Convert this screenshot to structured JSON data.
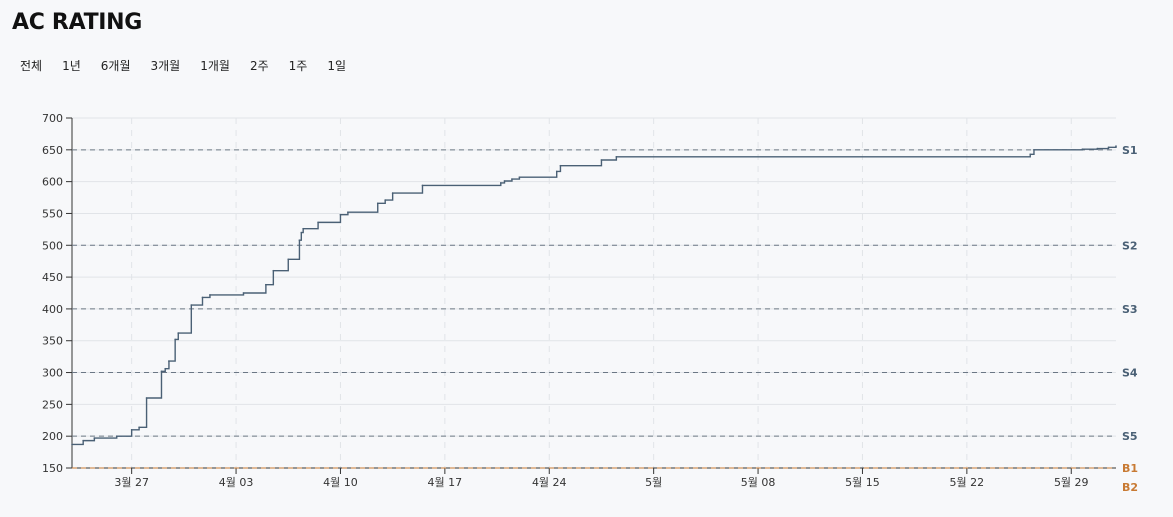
{
  "title": "AC RATING",
  "ranges": [
    "전체",
    "1년",
    "6개월",
    "3개월",
    "1개월",
    "2주",
    "1주",
    "1일"
  ],
  "colors": {
    "line": "#4a6075",
    "grid": "#e1e4e8",
    "threshold": "#6b7785",
    "silver": "#4a6075",
    "bronze": "#c87a33"
  },
  "chart_data": {
    "type": "line",
    "title": "",
    "xlabel": "",
    "ylabel": "",
    "ylim": [
      150,
      700
    ],
    "yticks": [
      150,
      200,
      250,
      300,
      350,
      400,
      450,
      500,
      550,
      600,
      650,
      700
    ],
    "xlim": [
      "2025-03-23",
      "2025-06-01"
    ],
    "xticks": [
      {
        "date": "2025-03-27",
        "label": "3월 27"
      },
      {
        "date": "2025-04-03",
        "label": "4월 03"
      },
      {
        "date": "2025-04-10",
        "label": "4월 10"
      },
      {
        "date": "2025-04-17",
        "label": "4월 17"
      },
      {
        "date": "2025-04-24",
        "label": "4월 24"
      },
      {
        "date": "2025-05-01",
        "label": "5월"
      },
      {
        "date": "2025-05-08",
        "label": "5월 08"
      },
      {
        "date": "2025-05-15",
        "label": "5월 15"
      },
      {
        "date": "2025-05-22",
        "label": "5월 22"
      },
      {
        "date": "2025-05-29",
        "label": "5월 29"
      }
    ],
    "thresholds": [
      {
        "value": 650,
        "label": "S1",
        "tier": "silver"
      },
      {
        "value": 500,
        "label": "S2",
        "tier": "silver"
      },
      {
        "value": 400,
        "label": "S3",
        "tier": "silver"
      },
      {
        "value": 300,
        "label": "S4",
        "tier": "silver"
      },
      {
        "value": 200,
        "label": "S5",
        "tier": "silver"
      },
      {
        "value": 150,
        "label": "B1",
        "tier": "bronze"
      },
      {
        "value": 150,
        "label": "B2",
        "tier": "bronze"
      }
    ],
    "series": [
      {
        "step": true,
        "points": [
          [
            "2025-03-23",
            187
          ],
          [
            "2025-03-23 18:00",
            193
          ],
          [
            "2025-03-24 12:00",
            197
          ],
          [
            "2025-03-26",
            200
          ],
          [
            "2025-03-27",
            210
          ],
          [
            "2025-03-27 12:00",
            214
          ],
          [
            "2025-03-28",
            260
          ],
          [
            "2025-03-29",
            302
          ],
          [
            "2025-03-29 06:00",
            306
          ],
          [
            "2025-03-29 12:00",
            318
          ],
          [
            "2025-03-29 22:00",
            352
          ],
          [
            "2025-03-30 03:00",
            362
          ],
          [
            "2025-03-31",
            406
          ],
          [
            "2025-03-31 18:00",
            418
          ],
          [
            "2025-04-01 06:00",
            422
          ],
          [
            "2025-04-03 12:00",
            425
          ],
          [
            "2025-04-05",
            438
          ],
          [
            "2025-04-05 12:00",
            460
          ],
          [
            "2025-04-06 12:00",
            478
          ],
          [
            "2025-04-07 06:00",
            508
          ],
          [
            "2025-04-07 09:00",
            520
          ],
          [
            "2025-04-07 12:00",
            526
          ],
          [
            "2025-04-08 12:00",
            536
          ],
          [
            "2025-04-10",
            548
          ],
          [
            "2025-04-10 12:00",
            552
          ],
          [
            "2025-04-12 12:00",
            566
          ],
          [
            "2025-04-13",
            571
          ],
          [
            "2025-04-13 12:00",
            582
          ],
          [
            "2025-04-15 12:00",
            594
          ],
          [
            "2025-04-20 18:00",
            598
          ],
          [
            "2025-04-21",
            601
          ],
          [
            "2025-04-21 12:00",
            604
          ],
          [
            "2025-04-22",
            607
          ],
          [
            "2025-04-24 12:00",
            616
          ],
          [
            "2025-04-24 18:00",
            625
          ],
          [
            "2025-04-27 12:00",
            634
          ],
          [
            "2025-04-28 12:00",
            639
          ],
          [
            "2025-05-26 06:00",
            643
          ],
          [
            "2025-05-26 12:00",
            650
          ],
          [
            "2025-05-29 18:00",
            651
          ],
          [
            "2025-05-30 18:00",
            652
          ],
          [
            "2025-05-31 12:00",
            654
          ],
          [
            "2025-06-01",
            656
          ]
        ]
      }
    ]
  }
}
